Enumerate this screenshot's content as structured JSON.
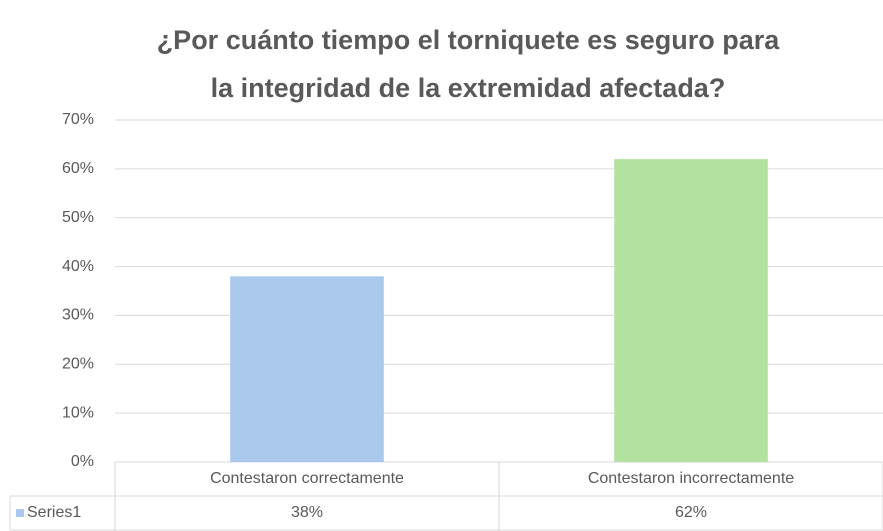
{
  "chart_data": {
    "type": "bar",
    "title": [
      "¿Por cuánto tiempo el torniquete es seguro para",
      "la integridad de la extremidad afectada?"
    ],
    "categories": [
      "Contestaron correctamente",
      "Contestaron incorrectamente"
    ],
    "series": [
      {
        "name": "Series1",
        "color": "#a9c8ec",
        "colors": [
          "#a9c8ec",
          "#b3e2a0"
        ],
        "values": [
          38,
          62
        ],
        "value_labels": [
          "38%",
          "62%"
        ]
      }
    ],
    "ylim": [
      0,
      70
    ],
    "yticks": [
      {
        "value": 0,
        "label": "0%"
      },
      {
        "value": 10,
        "label": "10%"
      },
      {
        "value": 20,
        "label": "20%"
      },
      {
        "value": 30,
        "label": "30%"
      },
      {
        "value": 40,
        "label": "40%"
      },
      {
        "value": 50,
        "label": "50%"
      },
      {
        "value": 60,
        "label": "60%"
      },
      {
        "value": 70,
        "label": "70%"
      }
    ],
    "grid": true
  }
}
